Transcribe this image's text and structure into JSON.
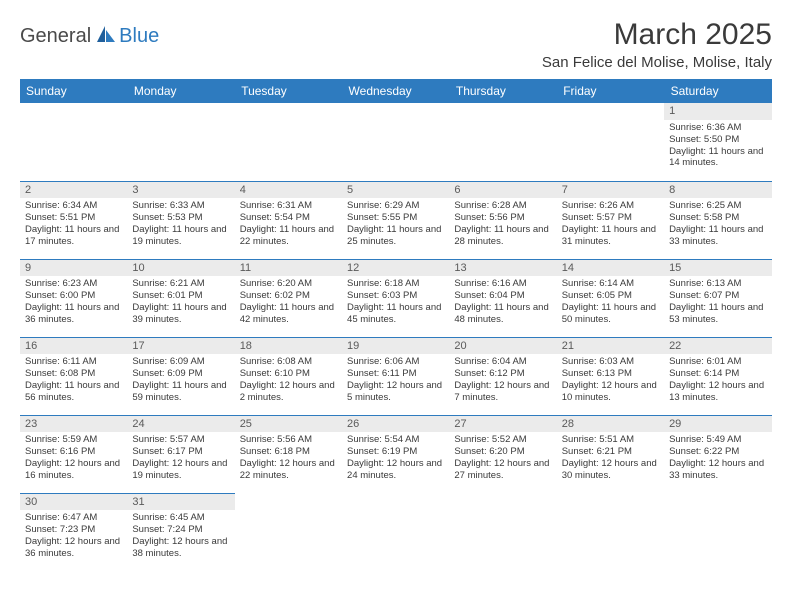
{
  "logo": {
    "part1": "General",
    "part2": "Blue"
  },
  "title": "March 2025",
  "location": "San Felice del Molise, Molise, Italy",
  "dayHeaders": [
    "Sunday",
    "Monday",
    "Tuesday",
    "Wednesday",
    "Thursday",
    "Friday",
    "Saturday"
  ],
  "colors": {
    "header_bg": "#2e7bbf",
    "header_text": "#ffffff",
    "border": "#2e7bbf",
    "daynum_bg": "#ebebeb",
    "text": "#3a3a3a"
  },
  "weeks": [
    [
      null,
      null,
      null,
      null,
      null,
      null,
      {
        "n": "1",
        "sr": "Sunrise: 6:36 AM",
        "ss": "Sunset: 5:50 PM",
        "dl": "Daylight: 11 hours and 14 minutes."
      }
    ],
    [
      {
        "n": "2",
        "sr": "Sunrise: 6:34 AM",
        "ss": "Sunset: 5:51 PM",
        "dl": "Daylight: 11 hours and 17 minutes."
      },
      {
        "n": "3",
        "sr": "Sunrise: 6:33 AM",
        "ss": "Sunset: 5:53 PM",
        "dl": "Daylight: 11 hours and 19 minutes."
      },
      {
        "n": "4",
        "sr": "Sunrise: 6:31 AM",
        "ss": "Sunset: 5:54 PM",
        "dl": "Daylight: 11 hours and 22 minutes."
      },
      {
        "n": "5",
        "sr": "Sunrise: 6:29 AM",
        "ss": "Sunset: 5:55 PM",
        "dl": "Daylight: 11 hours and 25 minutes."
      },
      {
        "n": "6",
        "sr": "Sunrise: 6:28 AM",
        "ss": "Sunset: 5:56 PM",
        "dl": "Daylight: 11 hours and 28 minutes."
      },
      {
        "n": "7",
        "sr": "Sunrise: 6:26 AM",
        "ss": "Sunset: 5:57 PM",
        "dl": "Daylight: 11 hours and 31 minutes."
      },
      {
        "n": "8",
        "sr": "Sunrise: 6:25 AM",
        "ss": "Sunset: 5:58 PM",
        "dl": "Daylight: 11 hours and 33 minutes."
      }
    ],
    [
      {
        "n": "9",
        "sr": "Sunrise: 6:23 AM",
        "ss": "Sunset: 6:00 PM",
        "dl": "Daylight: 11 hours and 36 minutes."
      },
      {
        "n": "10",
        "sr": "Sunrise: 6:21 AM",
        "ss": "Sunset: 6:01 PM",
        "dl": "Daylight: 11 hours and 39 minutes."
      },
      {
        "n": "11",
        "sr": "Sunrise: 6:20 AM",
        "ss": "Sunset: 6:02 PM",
        "dl": "Daylight: 11 hours and 42 minutes."
      },
      {
        "n": "12",
        "sr": "Sunrise: 6:18 AM",
        "ss": "Sunset: 6:03 PM",
        "dl": "Daylight: 11 hours and 45 minutes."
      },
      {
        "n": "13",
        "sr": "Sunrise: 6:16 AM",
        "ss": "Sunset: 6:04 PM",
        "dl": "Daylight: 11 hours and 48 minutes."
      },
      {
        "n": "14",
        "sr": "Sunrise: 6:14 AM",
        "ss": "Sunset: 6:05 PM",
        "dl": "Daylight: 11 hours and 50 minutes."
      },
      {
        "n": "15",
        "sr": "Sunrise: 6:13 AM",
        "ss": "Sunset: 6:07 PM",
        "dl": "Daylight: 11 hours and 53 minutes."
      }
    ],
    [
      {
        "n": "16",
        "sr": "Sunrise: 6:11 AM",
        "ss": "Sunset: 6:08 PM",
        "dl": "Daylight: 11 hours and 56 minutes."
      },
      {
        "n": "17",
        "sr": "Sunrise: 6:09 AM",
        "ss": "Sunset: 6:09 PM",
        "dl": "Daylight: 11 hours and 59 minutes."
      },
      {
        "n": "18",
        "sr": "Sunrise: 6:08 AM",
        "ss": "Sunset: 6:10 PM",
        "dl": "Daylight: 12 hours and 2 minutes."
      },
      {
        "n": "19",
        "sr": "Sunrise: 6:06 AM",
        "ss": "Sunset: 6:11 PM",
        "dl": "Daylight: 12 hours and 5 minutes."
      },
      {
        "n": "20",
        "sr": "Sunrise: 6:04 AM",
        "ss": "Sunset: 6:12 PM",
        "dl": "Daylight: 12 hours and 7 minutes."
      },
      {
        "n": "21",
        "sr": "Sunrise: 6:03 AM",
        "ss": "Sunset: 6:13 PM",
        "dl": "Daylight: 12 hours and 10 minutes."
      },
      {
        "n": "22",
        "sr": "Sunrise: 6:01 AM",
        "ss": "Sunset: 6:14 PM",
        "dl": "Daylight: 12 hours and 13 minutes."
      }
    ],
    [
      {
        "n": "23",
        "sr": "Sunrise: 5:59 AM",
        "ss": "Sunset: 6:16 PM",
        "dl": "Daylight: 12 hours and 16 minutes."
      },
      {
        "n": "24",
        "sr": "Sunrise: 5:57 AM",
        "ss": "Sunset: 6:17 PM",
        "dl": "Daylight: 12 hours and 19 minutes."
      },
      {
        "n": "25",
        "sr": "Sunrise: 5:56 AM",
        "ss": "Sunset: 6:18 PM",
        "dl": "Daylight: 12 hours and 22 minutes."
      },
      {
        "n": "26",
        "sr": "Sunrise: 5:54 AM",
        "ss": "Sunset: 6:19 PM",
        "dl": "Daylight: 12 hours and 24 minutes."
      },
      {
        "n": "27",
        "sr": "Sunrise: 5:52 AM",
        "ss": "Sunset: 6:20 PM",
        "dl": "Daylight: 12 hours and 27 minutes."
      },
      {
        "n": "28",
        "sr": "Sunrise: 5:51 AM",
        "ss": "Sunset: 6:21 PM",
        "dl": "Daylight: 12 hours and 30 minutes."
      },
      {
        "n": "29",
        "sr": "Sunrise: 5:49 AM",
        "ss": "Sunset: 6:22 PM",
        "dl": "Daylight: 12 hours and 33 minutes."
      }
    ],
    [
      {
        "n": "30",
        "sr": "Sunrise: 6:47 AM",
        "ss": "Sunset: 7:23 PM",
        "dl": "Daylight: 12 hours and 36 minutes."
      },
      {
        "n": "31",
        "sr": "Sunrise: 6:45 AM",
        "ss": "Sunset: 7:24 PM",
        "dl": "Daylight: 12 hours and 38 minutes."
      },
      null,
      null,
      null,
      null,
      null
    ]
  ]
}
